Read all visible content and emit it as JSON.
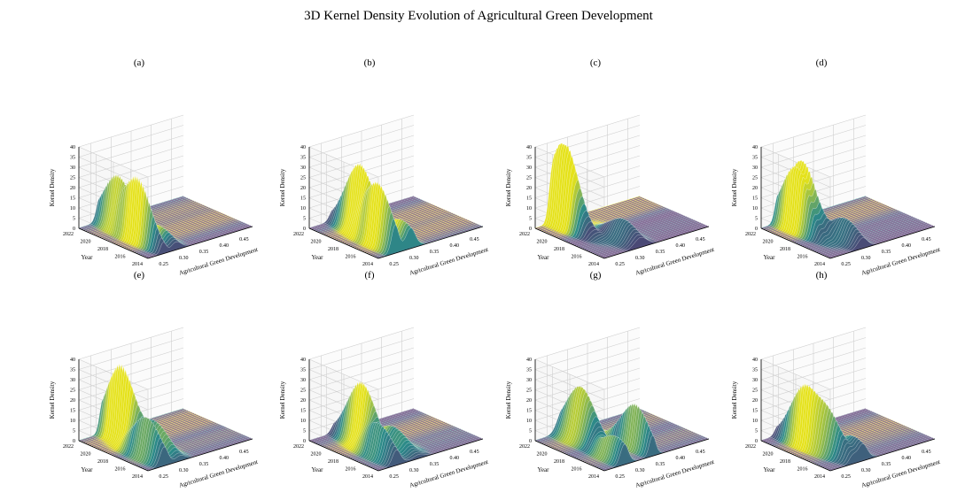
{
  "title": "3D Kernel Density Evolution of Agricultural Green Development",
  "colors": {
    "surface_low": "#5b2a6b",
    "surface_mid": "#2a8a8a",
    "surface_high": "#e5e21a",
    "grid": "#cfcfcf"
  },
  "chart_data": [
    {
      "type": "surface3d",
      "panel": "(a)",
      "xlabel": "Agricultural Green Development",
      "ylabel": "Year",
      "zlabel": "Kernel Density",
      "x_ticks": [
        "0.25",
        "0.30",
        "0.35",
        "0.40",
        "0.45"
      ],
      "y_ticks": [
        "2014",
        "2016",
        "2018",
        "2020",
        "2022"
      ],
      "z_ticks": [
        "0",
        "5",
        "10",
        "15",
        "20",
        "25",
        "30",
        "35",
        "40"
      ],
      "xlim": [
        0.22,
        0.48
      ],
      "ylim": [
        2014,
        2022
      ],
      "zlim": [
        0,
        40
      ],
      "peaks": [
        {
          "x": 0.258,
          "year": 2017,
          "density": 31,
          "width": 0.007
        },
        {
          "x": 0.272,
          "year": 2020,
          "density": 26,
          "width": 0.008
        },
        {
          "x": 0.29,
          "year": 2016,
          "density": 8,
          "width": 0.012
        }
      ]
    },
    {
      "type": "surface3d",
      "panel": "(b)",
      "xlabel": "Agricultural Green Development",
      "ylabel": "Year",
      "zlabel": "Kernel Density",
      "x_ticks": [
        "0.25",
        "0.30",
        "0.35",
        "0.40",
        "0.45"
      ],
      "y_ticks": [
        "2014",
        "2016",
        "2018",
        "2020",
        "2022"
      ],
      "z_ticks": [
        "0",
        "5",
        "10",
        "15",
        "20",
        "25",
        "30",
        "35",
        "40"
      ],
      "xlim": [
        0.22,
        0.48
      ],
      "ylim": [
        2014,
        2022
      ],
      "zlim": [
        0,
        40
      ],
      "peaks": [
        {
          "x": 0.262,
          "year": 2016,
          "density": 30,
          "width": 0.009
        },
        {
          "x": 0.28,
          "year": 2019,
          "density": 33,
          "width": 0.009
        },
        {
          "x": 0.3,
          "year": 2015,
          "density": 12,
          "width": 0.012
        }
      ]
    },
    {
      "type": "surface3d",
      "panel": "(c)",
      "xlabel": "Agricultural Green Development",
      "ylabel": "Year",
      "zlabel": "Kernel Density",
      "x_ticks": [
        "0.25",
        "0.30",
        "0.35",
        "0.40",
        "0.45"
      ],
      "y_ticks": [
        "2014",
        "2016",
        "2018",
        "2020",
        "2022"
      ],
      "z_ticks": [
        "0",
        "5",
        "10",
        "15",
        "20",
        "25",
        "30",
        "35",
        "40"
      ],
      "xlim": [
        0.22,
        0.48
      ],
      "ylim": [
        2014,
        2022
      ],
      "zlim": [
        0,
        40
      ],
      "peaks": [
        {
          "x": 0.262,
          "year": 2021,
          "density": 30,
          "width": 0.008
        },
        {
          "x": 0.275,
          "year": 2021,
          "density": 30,
          "width": 0.007
        },
        {
          "x": 0.31,
          "year": 2016,
          "density": 10,
          "width": 0.015
        }
      ]
    },
    {
      "type": "surface3d",
      "panel": "(d)",
      "xlabel": "Agricultural Green Development",
      "ylabel": "Year",
      "zlabel": "Kernel Density",
      "x_ticks": [
        "0.25",
        "0.30",
        "0.35",
        "0.40",
        "0.45"
      ],
      "y_ticks": [
        "2014",
        "2016",
        "2018",
        "2020",
        "2022"
      ],
      "z_ticks": [
        "0",
        "5",
        "10",
        "15",
        "20",
        "25",
        "30",
        "35",
        "40"
      ],
      "xlim": [
        0.22,
        0.48
      ],
      "ylim": [
        2014,
        2022
      ],
      "zlim": [
        0,
        40
      ],
      "peaks": [
        {
          "x": 0.262,
          "year": 2020,
          "density": 30,
          "width": 0.008
        },
        {
          "x": 0.28,
          "year": 2020,
          "density": 31,
          "width": 0.007
        },
        {
          "x": 0.3,
          "year": 2016,
          "density": 11,
          "width": 0.012
        }
      ]
    },
    {
      "type": "surface3d",
      "panel": "(e)",
      "xlabel": "Agricultural Green Development",
      "ylabel": "Year",
      "zlabel": "Kernel Density",
      "x_ticks": [
        "0.25",
        "0.30",
        "0.35",
        "0.40",
        "0.45"
      ],
      "y_ticks": [
        "2014",
        "2016",
        "2018",
        "2020",
        "2022"
      ],
      "z_ticks": [
        "0",
        "5",
        "10",
        "15",
        "20",
        "25",
        "30",
        "35",
        "40"
      ],
      "xlim": [
        0.22,
        0.48
      ],
      "ylim": [
        2014,
        2022
      ],
      "zlim": [
        0,
        40
      ],
      "peaks": [
        {
          "x": 0.28,
          "year": 2020,
          "density": 37,
          "width": 0.008
        },
        {
          "x": 0.26,
          "year": 2016,
          "density": 20,
          "width": 0.01
        },
        {
          "x": 0.3,
          "year": 2017,
          "density": 14,
          "width": 0.012
        }
      ]
    },
    {
      "type": "surface3d",
      "panel": "(f)",
      "xlabel": "Agricultural Green Development",
      "ylabel": "Year",
      "zlabel": "Kernel Density",
      "x_ticks": [
        "0.25",
        "0.30",
        "0.35",
        "0.40",
        "0.45"
      ],
      "y_ticks": [
        "2014",
        "2016",
        "2018",
        "2020",
        "2022"
      ],
      "z_ticks": [
        "0",
        "5",
        "10",
        "15",
        "20",
        "25",
        "30",
        "35",
        "40"
      ],
      "xlim": [
        0.22,
        0.48
      ],
      "ylim": [
        2014,
        2022
      ],
      "zlim": [
        0,
        40
      ],
      "peaks": [
        {
          "x": 0.285,
          "year": 2019,
          "density": 30,
          "width": 0.009
        },
        {
          "x": 0.265,
          "year": 2016,
          "density": 16,
          "width": 0.01
        },
        {
          "x": 0.32,
          "year": 2017,
          "density": 10,
          "width": 0.014
        }
      ]
    },
    {
      "type": "surface3d",
      "panel": "(g)",
      "xlabel": "Agricultural Green Development",
      "ylabel": "Year",
      "zlabel": "Kernel Density",
      "x_ticks": [
        "0.25",
        "0.30",
        "0.35",
        "0.40",
        "0.45"
      ],
      "y_ticks": [
        "2014",
        "2016",
        "2018",
        "2020",
        "2022"
      ],
      "z_ticks": [
        "0",
        "5",
        "10",
        "15",
        "20",
        "25",
        "30",
        "35",
        "40"
      ],
      "xlim": [
        0.22,
        0.48
      ],
      "ylim": [
        2014,
        2022
      ],
      "zlim": [
        0,
        40
      ],
      "peaks": [
        {
          "x": 0.29,
          "year": 2020,
          "density": 26,
          "width": 0.014
        },
        {
          "x": 0.34,
          "year": 2016,
          "density": 22,
          "width": 0.008
        },
        {
          "x": 0.27,
          "year": 2015,
          "density": 12,
          "width": 0.01
        }
      ]
    },
    {
      "type": "surface3d",
      "panel": "(h)",
      "xlabel": "Agricultural Green Development",
      "ylabel": "Year",
      "zlabel": "Kernel Density",
      "x_ticks": [
        "0.25",
        "0.30",
        "0.35",
        "0.40",
        "0.45"
      ],
      "y_ticks": [
        "2014",
        "2016",
        "2018",
        "2020",
        "2022"
      ],
      "z_ticks": [
        "0",
        "5",
        "10",
        "15",
        "20",
        "25",
        "30",
        "35",
        "40"
      ],
      "xlim": [
        0.22,
        0.48
      ],
      "ylim": [
        2014,
        2022
      ],
      "zlim": [
        0,
        40
      ],
      "peaks": [
        {
          "x": 0.262,
          "year": 2019,
          "density": 28,
          "width": 0.008
        },
        {
          "x": 0.275,
          "year": 2017,
          "density": 20,
          "width": 0.008
        },
        {
          "x": 0.3,
          "year": 2015,
          "density": 10,
          "width": 0.012
        }
      ]
    }
  ]
}
